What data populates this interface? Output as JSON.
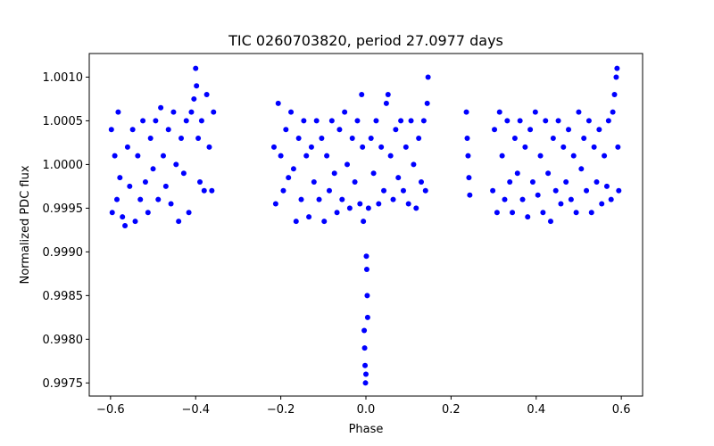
{
  "chart_data": {
    "type": "scatter",
    "title": "TIC 0260703820, period 27.0977 days",
    "xlabel": "Phase",
    "ylabel": "Normalized PDC flux",
    "xlim": [
      -0.65,
      0.65
    ],
    "ylim": [
      0.99735,
      1.00127
    ],
    "xticks": [
      -0.6,
      -0.4,
      -0.2,
      0.0,
      0.2,
      0.4,
      0.6
    ],
    "xtick_labels": [
      "−0.6",
      "−0.4",
      "−0.2",
      "0.0",
      "0.2",
      "0.4",
      "0.6"
    ],
    "yticks": [
      0.9975,
      0.998,
      0.9985,
      0.999,
      0.9995,
      1.0,
      1.0005,
      1.001
    ],
    "ytick_labels": [
      "0.9975",
      "0.9980",
      "0.9985",
      "0.9990",
      "0.9995",
      "1.0000",
      "1.0005",
      "1.0010"
    ],
    "series": [
      {
        "name": "PDC flux",
        "color": "#0000ff",
        "marker": "circle",
        "points": [
          [
            -0.598,
            1.0004
          ],
          [
            -0.596,
            0.99945
          ],
          [
            -0.59,
            1.0001
          ],
          [
            -0.585,
            0.9996
          ],
          [
            -0.582,
            1.0006
          ],
          [
            -0.578,
            0.99985
          ],
          [
            -0.572,
            0.9994
          ],
          [
            -0.566,
            0.9993
          ],
          [
            -0.56,
            1.0002
          ],
          [
            -0.555,
            0.99975
          ],
          [
            -0.548,
            1.0004
          ],
          [
            -0.542,
            0.99935
          ],
          [
            -0.536,
            1.0001
          ],
          [
            -0.53,
            0.9996
          ],
          [
            -0.524,
            1.0005
          ],
          [
            -0.518,
            0.9998
          ],
          [
            -0.512,
            0.99945
          ],
          [
            -0.506,
            1.0003
          ],
          [
            -0.5,
            0.99995
          ],
          [
            -0.494,
            1.0005
          ],
          [
            -0.488,
            0.9996
          ],
          [
            -0.482,
            1.00065
          ],
          [
            -0.476,
            1.0001
          ],
          [
            -0.47,
            0.99975
          ],
          [
            -0.464,
            1.0004
          ],
          [
            -0.458,
            0.99955
          ],
          [
            -0.452,
            1.0006
          ],
          [
            -0.446,
            1.0
          ],
          [
            -0.44,
            0.99935
          ],
          [
            -0.434,
            1.0003
          ],
          [
            -0.428,
            0.9999
          ],
          [
            -0.422,
            1.0005
          ],
          [
            -0.416,
            0.99945
          ],
          [
            -0.41,
            1.0006
          ],
          [
            -0.404,
            1.00075
          ],
          [
            -0.4,
            1.0011
          ],
          [
            -0.398,
            1.0009
          ],
          [
            -0.394,
            1.0003
          ],
          [
            -0.39,
            0.9998
          ],
          [
            -0.386,
            1.0005
          ],
          [
            -0.38,
            0.9997
          ],
          [
            -0.374,
            1.0008
          ],
          [
            -0.368,
            1.0002
          ],
          [
            -0.362,
            0.9997
          ],
          [
            -0.358,
            1.0006
          ],
          [
            -0.216,
            1.0002
          ],
          [
            -0.212,
            0.99955
          ],
          [
            -0.206,
            1.0007
          ],
          [
            -0.2,
            1.0001
          ],
          [
            -0.194,
            0.9997
          ],
          [
            -0.188,
            1.0004
          ],
          [
            -0.182,
            0.99985
          ],
          [
            -0.176,
            1.0006
          ],
          [
            -0.17,
            0.99995
          ],
          [
            -0.164,
            0.99935
          ],
          [
            -0.158,
            1.0003
          ],
          [
            -0.152,
            0.9996
          ],
          [
            -0.146,
            1.0005
          ],
          [
            -0.14,
            1.0001
          ],
          [
            -0.134,
            0.9994
          ],
          [
            -0.128,
            1.0002
          ],
          [
            -0.122,
            0.9998
          ],
          [
            -0.116,
            1.0005
          ],
          [
            -0.11,
            0.9996
          ],
          [
            -0.104,
            1.0003
          ],
          [
            -0.098,
            0.99935
          ],
          [
            -0.092,
            1.0001
          ],
          [
            -0.086,
            0.9997
          ],
          [
            -0.08,
            1.0005
          ],
          [
            -0.074,
            0.9999
          ],
          [
            -0.068,
            0.99945
          ],
          [
            -0.062,
            1.0004
          ],
          [
            -0.056,
            0.9996
          ],
          [
            -0.05,
            1.0006
          ],
          [
            -0.044,
            1.0
          ],
          [
            -0.038,
            0.9995
          ],
          [
            -0.032,
            1.0003
          ],
          [
            -0.026,
            0.9998
          ],
          [
            -0.02,
            1.0005
          ],
          [
            -0.014,
            0.99955
          ],
          [
            -0.01,
            1.0008
          ],
          [
            -0.008,
            1.0002
          ],
          [
            -0.006,
            0.99935
          ],
          [
            -0.004,
            0.9981
          ],
          [
            -0.003,
            0.9979
          ],
          [
            -0.002,
            0.9977
          ],
          [
            -0.001,
            0.9975
          ],
          [
            0.0,
            0.9976
          ],
          [
            0.001,
            0.99895
          ],
          [
            0.002,
            0.9988
          ],
          [
            0.003,
            0.9985
          ],
          [
            0.004,
            0.99825
          ],
          [
            0.006,
            0.9995
          ],
          [
            0.012,
            1.0003
          ],
          [
            0.018,
            0.9999
          ],
          [
            0.024,
            1.0005
          ],
          [
            0.03,
            0.99955
          ],
          [
            0.036,
            1.0002
          ],
          [
            0.042,
            0.9997
          ],
          [
            0.048,
            1.0007
          ],
          [
            0.052,
            1.0008
          ],
          [
            0.058,
            1.0001
          ],
          [
            0.064,
            0.9996
          ],
          [
            0.07,
            1.0004
          ],
          [
            0.076,
            0.99985
          ],
          [
            0.082,
            1.0005
          ],
          [
            0.088,
            0.9997
          ],
          [
            0.094,
            1.0002
          ],
          [
            0.1,
            0.99955
          ],
          [
            0.106,
            1.0005
          ],
          [
            0.112,
            1.0
          ],
          [
            0.118,
            0.9995
          ],
          [
            0.124,
            1.0003
          ],
          [
            0.13,
            0.9998
          ],
          [
            0.136,
            1.0005
          ],
          [
            0.14,
            0.9997
          ],
          [
            0.144,
            1.0007
          ],
          [
            0.146,
            1.001
          ],
          [
            0.236,
            1.0006
          ],
          [
            0.238,
            1.0003
          ],
          [
            0.24,
            1.0001
          ],
          [
            0.242,
            0.99985
          ],
          [
            0.244,
            0.99965
          ],
          [
            0.298,
            0.9997
          ],
          [
            0.302,
            1.0004
          ],
          [
            0.308,
            0.99945
          ],
          [
            0.314,
            1.0006
          ],
          [
            0.32,
            1.0001
          ],
          [
            0.326,
            0.9996
          ],
          [
            0.332,
            1.0005
          ],
          [
            0.338,
            0.9998
          ],
          [
            0.344,
            0.99945
          ],
          [
            0.35,
            1.0003
          ],
          [
            0.356,
            0.9999
          ],
          [
            0.362,
            1.0005
          ],
          [
            0.368,
            0.9996
          ],
          [
            0.374,
            1.0002
          ],
          [
            0.38,
            0.9994
          ],
          [
            0.386,
            1.0004
          ],
          [
            0.392,
            0.9998
          ],
          [
            0.398,
            1.0006
          ],
          [
            0.404,
            0.99965
          ],
          [
            0.41,
            1.0001
          ],
          [
            0.416,
            0.99945
          ],
          [
            0.422,
            1.0005
          ],
          [
            0.428,
            0.9999
          ],
          [
            0.434,
            0.99935
          ],
          [
            0.44,
            1.0003
          ],
          [
            0.446,
            0.9997
          ],
          [
            0.452,
            1.0005
          ],
          [
            0.458,
            0.99955
          ],
          [
            0.464,
            1.0002
          ],
          [
            0.47,
            0.9998
          ],
          [
            0.476,
            1.0004
          ],
          [
            0.482,
            0.9996
          ],
          [
            0.488,
            1.0001
          ],
          [
            0.494,
            0.99945
          ],
          [
            0.5,
            1.0006
          ],
          [
            0.506,
            0.99995
          ],
          [
            0.512,
            1.0003
          ],
          [
            0.518,
            0.9997
          ],
          [
            0.524,
            1.0005
          ],
          [
            0.53,
            0.99945
          ],
          [
            0.536,
            1.0002
          ],
          [
            0.542,
            0.9998
          ],
          [
            0.548,
            1.0004
          ],
          [
            0.554,
            0.99955
          ],
          [
            0.56,
            1.0001
          ],
          [
            0.566,
            0.99975
          ],
          [
            0.57,
            1.0005
          ],
          [
            0.576,
            0.9996
          ],
          [
            0.58,
            1.0006
          ],
          [
            0.584,
            1.0008
          ],
          [
            0.588,
            1.001
          ],
          [
            0.59,
            1.0011
          ],
          [
            0.592,
            1.0002
          ],
          [
            0.594,
            0.9997
          ]
        ]
      }
    ]
  }
}
